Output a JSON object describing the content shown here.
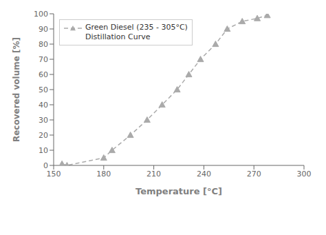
{
  "chart_data": {
    "type": "line",
    "x": [
      155,
      158,
      180,
      185,
      196,
      206,
      215,
      224,
      231,
      238,
      247,
      254,
      263,
      272,
      278
    ],
    "series": [
      {
        "name": "Green Diesel (235 - 305°C)\nDistillation Curve",
        "color": "#aaaaaa",
        "marker": "triangle",
        "line_style": "dashed",
        "values": [
          1,
          0,
          5,
          10,
          20,
          30,
          40,
          50,
          60,
          70,
          80,
          90,
          95,
          97,
          99
        ]
      }
    ],
    "x_label": "Temperature [°C]",
    "y_label": "Recovered volume [%]",
    "xlim": [
      150,
      300
    ],
    "ylim": [
      0,
      100
    ],
    "xticks": [
      150,
      180,
      210,
      240,
      270,
      300
    ],
    "yticks": [
      0,
      10,
      20,
      30,
      40,
      50,
      60,
      70,
      80,
      90,
      100
    ],
    "grid": false,
    "legend": "upper left"
  }
}
